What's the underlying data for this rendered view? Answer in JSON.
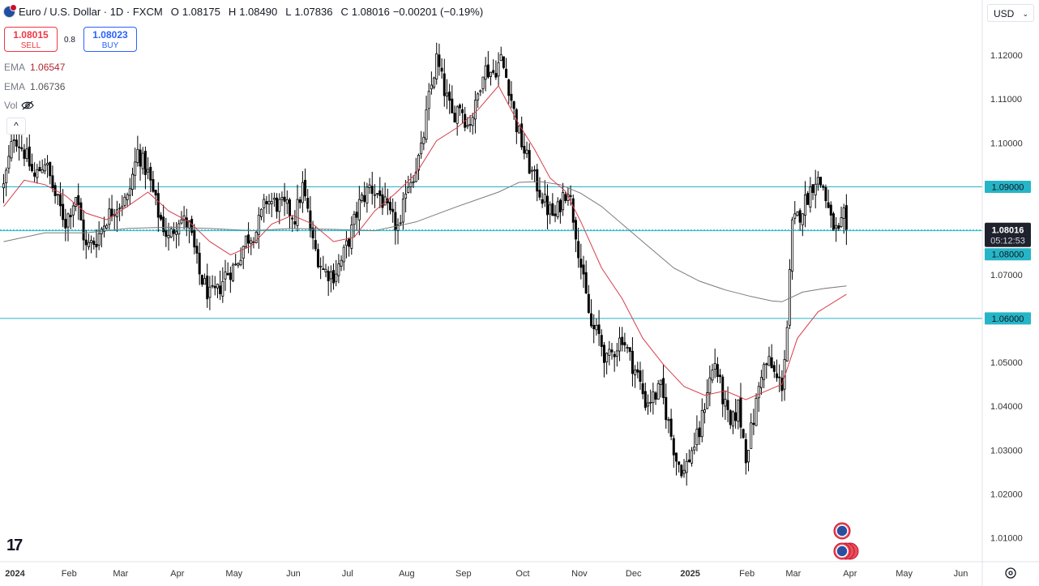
{
  "header": {
    "symbol": "Euro / U.S. Dollar · 1D · FXCM",
    "o_label": "O",
    "o_value": "1.08175",
    "h_label": "H",
    "h_value": "1.08490",
    "l_label": "L",
    "l_value": "1.07836",
    "c_label": "C",
    "c_value": "1.08016",
    "change": "−0.00201 (−0.19%)"
  },
  "trade": {
    "sell_price": "1.08015",
    "sell_label": "SELL",
    "spread": "0.8",
    "buy_price": "1.08023",
    "buy_label": "BUY"
  },
  "indicators": {
    "ema1_label": "EMA",
    "ema1_value": "1.06547",
    "ema2_label": "EMA",
    "ema2_value": "1.06736",
    "vol_label": "Vol"
  },
  "currency": {
    "label": "USD"
  },
  "colors": {
    "candle": "#000000",
    "ema_fast": "#d63d4a",
    "ema_slow": "#7a7a7a",
    "hline": "#26b5c6",
    "label_bg": "#26b5c6",
    "last_price_bg": "#1e222d",
    "axis_text": "#333333"
  },
  "icons": [
    "flag-eurusd-icon",
    "eye-off-icon",
    "chevron-up-icon",
    "chevron-down-icon",
    "tradingview-logo-icon",
    "event-flag-icon",
    "settings-icon"
  ],
  "chart_data": {
    "type": "candlestick",
    "timeframe": "1D",
    "ylim": [
      1.0055,
      1.1285
    ],
    "y_ticks": [
      "1.01000",
      "1.02000",
      "1.03000",
      "1.04000",
      "1.05000",
      "1.06000",
      "1.07000",
      "1.08000",
      "1.09000",
      "1.10000",
      "1.11000",
      "1.12000"
    ],
    "x_ticks": [
      "2024",
      "Feb",
      "Mar",
      "Apr",
      "May",
      "Jun",
      "Jul",
      "Aug",
      "Sep",
      "Oct",
      "Nov",
      "Dec",
      "2025",
      "Feb",
      "Mar",
      "Apr",
      "May",
      "Jun"
    ],
    "x_tick_index": [
      0,
      21,
      41,
      63,
      85,
      108,
      129,
      152,
      174,
      197,
      219,
      240,
      262,
      284,
      302,
      324,
      345,
      367
    ],
    "horizontal_lines": [
      {
        "value": 1.09,
        "label": "1.09000"
      },
      {
        "value": 1.08,
        "label": "1.08000"
      },
      {
        "value": 1.06,
        "label": "1.06000"
      }
    ],
    "last_price": {
      "value": 1.08016,
      "label": "1.08016",
      "countdown": "05:12:53"
    },
    "close_anchors": [
      [
        0,
        1.09
      ],
      [
        4,
        1.102
      ],
      [
        8,
        1.098
      ],
      [
        12,
        1.092
      ],
      [
        16,
        1.096
      ],
      [
        20,
        1.088
      ],
      [
        24,
        1.082
      ],
      [
        28,
        1.088
      ],
      [
        32,
        1.076
      ],
      [
        36,
        1.078
      ],
      [
        40,
        1.083
      ],
      [
        44,
        1.086
      ],
      [
        48,
        1.087
      ],
      [
        52,
        1.098
      ],
      [
        56,
        1.093
      ],
      [
        60,
        1.084
      ],
      [
        64,
        1.078
      ],
      [
        68,
        1.083
      ],
      [
        72,
        1.081
      ],
      [
        76,
        1.07
      ],
      [
        80,
        1.065
      ],
      [
        83,
        1.066
      ],
      [
        86,
        1.07
      ],
      [
        90,
        1.072
      ],
      [
        94,
        1.078
      ],
      [
        98,
        1.08
      ],
      [
        102,
        1.087
      ],
      [
        106,
        1.086
      ],
      [
        110,
        1.085
      ],
      [
        113,
        1.083
      ],
      [
        116,
        1.09
      ],
      [
        118,
        1.084
      ],
      [
        120,
        1.077
      ],
      [
        124,
        1.071
      ],
      [
        128,
        1.07
      ],
      [
        131,
        1.073
      ],
      [
        134,
        1.078
      ],
      [
        138,
        1.086
      ],
      [
        142,
        1.09
      ],
      [
        146,
        1.088
      ],
      [
        150,
        1.083
      ],
      [
        154,
        1.08
      ],
      [
        156,
        1.09
      ],
      [
        159,
        1.093
      ],
      [
        162,
        1.098
      ],
      [
        165,
        1.11
      ],
      [
        168,
        1.119
      ],
      [
        171,
        1.112
      ],
      [
        174,
        1.106
      ],
      [
        177,
        1.109
      ],
      [
        180,
        1.104
      ],
      [
        183,
        1.108
      ],
      [
        186,
        1.117
      ],
      [
        190,
        1.116
      ],
      [
        193,
        1.119
      ],
      [
        196,
        1.113
      ],
      [
        199,
        1.104
      ],
      [
        202,
        1.098
      ],
      [
        205,
        1.093
      ],
      [
        208,
        1.089
      ],
      [
        211,
        1.085
      ],
      [
        214,
        1.083
      ],
      [
        217,
        1.088
      ],
      [
        219,
        1.09
      ],
      [
        222,
        1.08
      ],
      [
        225,
        1.068
      ],
      [
        228,
        1.058
      ],
      [
        231,
        1.056
      ],
      [
        234,
        1.05
      ],
      [
        237,
        1.053
      ],
      [
        240,
        1.056
      ],
      [
        243,
        1.051
      ],
      [
        246,
        1.047
      ],
      [
        249,
        1.041
      ],
      [
        252,
        1.042
      ],
      [
        255,
        1.044
      ],
      [
        258,
        1.036
      ],
      [
        261,
        1.028
      ],
      [
        264,
        1.025
      ],
      [
        267,
        1.03
      ],
      [
        270,
        1.034
      ],
      [
        273,
        1.044
      ],
      [
        276,
        1.05
      ],
      [
        279,
        1.042
      ],
      [
        282,
        1.035
      ],
      [
        285,
        1.04
      ],
      [
        288,
        1.029
      ],
      [
        291,
        1.037
      ],
      [
        294,
        1.048
      ],
      [
        297,
        1.05
      ],
      [
        300,
        1.046
      ],
      [
        302,
        1.045
      ],
      [
        304,
        1.058
      ],
      [
        306,
        1.081
      ],
      [
        309,
        1.084
      ],
      [
        312,
        1.088
      ],
      [
        315,
        1.092
      ],
      [
        318,
        1.09
      ],
      [
        321,
        1.082
      ],
      [
        324,
        1.079
      ],
      [
        326,
        1.083
      ],
      [
        327,
        1.08
      ]
    ],
    "ema_fast": [
      [
        0,
        1.0855
      ],
      [
        8,
        1.0915
      ],
      [
        16,
        1.0905
      ],
      [
        24,
        1.088
      ],
      [
        32,
        1.084
      ],
      [
        40,
        1.0825
      ],
      [
        48,
        1.0855
      ],
      [
        56,
        1.0888
      ],
      [
        64,
        1.0845
      ],
      [
        72,
        1.082
      ],
      [
        80,
        1.0775
      ],
      [
        88,
        1.0745
      ],
      [
        96,
        1.0765
      ],
      [
        104,
        1.0815
      ],
      [
        112,
        1.0835
      ],
      [
        120,
        1.0815
      ],
      [
        128,
        1.0775
      ],
      [
        136,
        1.0785
      ],
      [
        144,
        1.0845
      ],
      [
        152,
        1.0885
      ],
      [
        160,
        1.093
      ],
      [
        168,
        1.1005
      ],
      [
        176,
        1.1035
      ],
      [
        184,
        1.1075
      ],
      [
        192,
        1.113
      ],
      [
        200,
        1.1042
      ],
      [
        206,
        1.0985
      ],
      [
        212,
        1.092
      ],
      [
        218,
        1.089
      ],
      [
        224,
        1.082
      ],
      [
        232,
        1.0715
      ],
      [
        240,
        1.0645
      ],
      [
        248,
        1.0555
      ],
      [
        256,
        1.0495
      ],
      [
        264,
        1.0445
      ],
      [
        272,
        1.0425
      ],
      [
        280,
        1.0435
      ],
      [
        288,
        1.0415
      ],
      [
        296,
        1.0435
      ],
      [
        302,
        1.045
      ],
      [
        308,
        1.0555
      ],
      [
        316,
        1.0615
      ],
      [
        327,
        1.0655
      ]
    ],
    "ema_slow": [
      [
        0,
        1.0775
      ],
      [
        16,
        1.0795
      ],
      [
        32,
        1.0795
      ],
      [
        48,
        1.0805
      ],
      [
        64,
        1.0808
      ],
      [
        80,
        1.0805
      ],
      [
        96,
        1.08
      ],
      [
        112,
        1.0805
      ],
      [
        128,
        1.0803
      ],
      [
        144,
        1.08
      ],
      [
        160,
        1.082
      ],
      [
        176,
        1.0855
      ],
      [
        192,
        1.0888
      ],
      [
        200,
        1.091
      ],
      [
        208,
        1.0912
      ],
      [
        216,
        1.0905
      ],
      [
        224,
        1.0885
      ],
      [
        232,
        1.0855
      ],
      [
        240,
        1.0815
      ],
      [
        250,
        1.0765
      ],
      [
        260,
        1.0715
      ],
      [
        270,
        1.0685
      ],
      [
        280,
        1.0665
      ],
      [
        290,
        1.065
      ],
      [
        298,
        1.064
      ],
      [
        302,
        1.0638
      ],
      [
        310,
        1.066
      ],
      [
        318,
        1.0668
      ],
      [
        327,
        1.0674
      ]
    ]
  }
}
